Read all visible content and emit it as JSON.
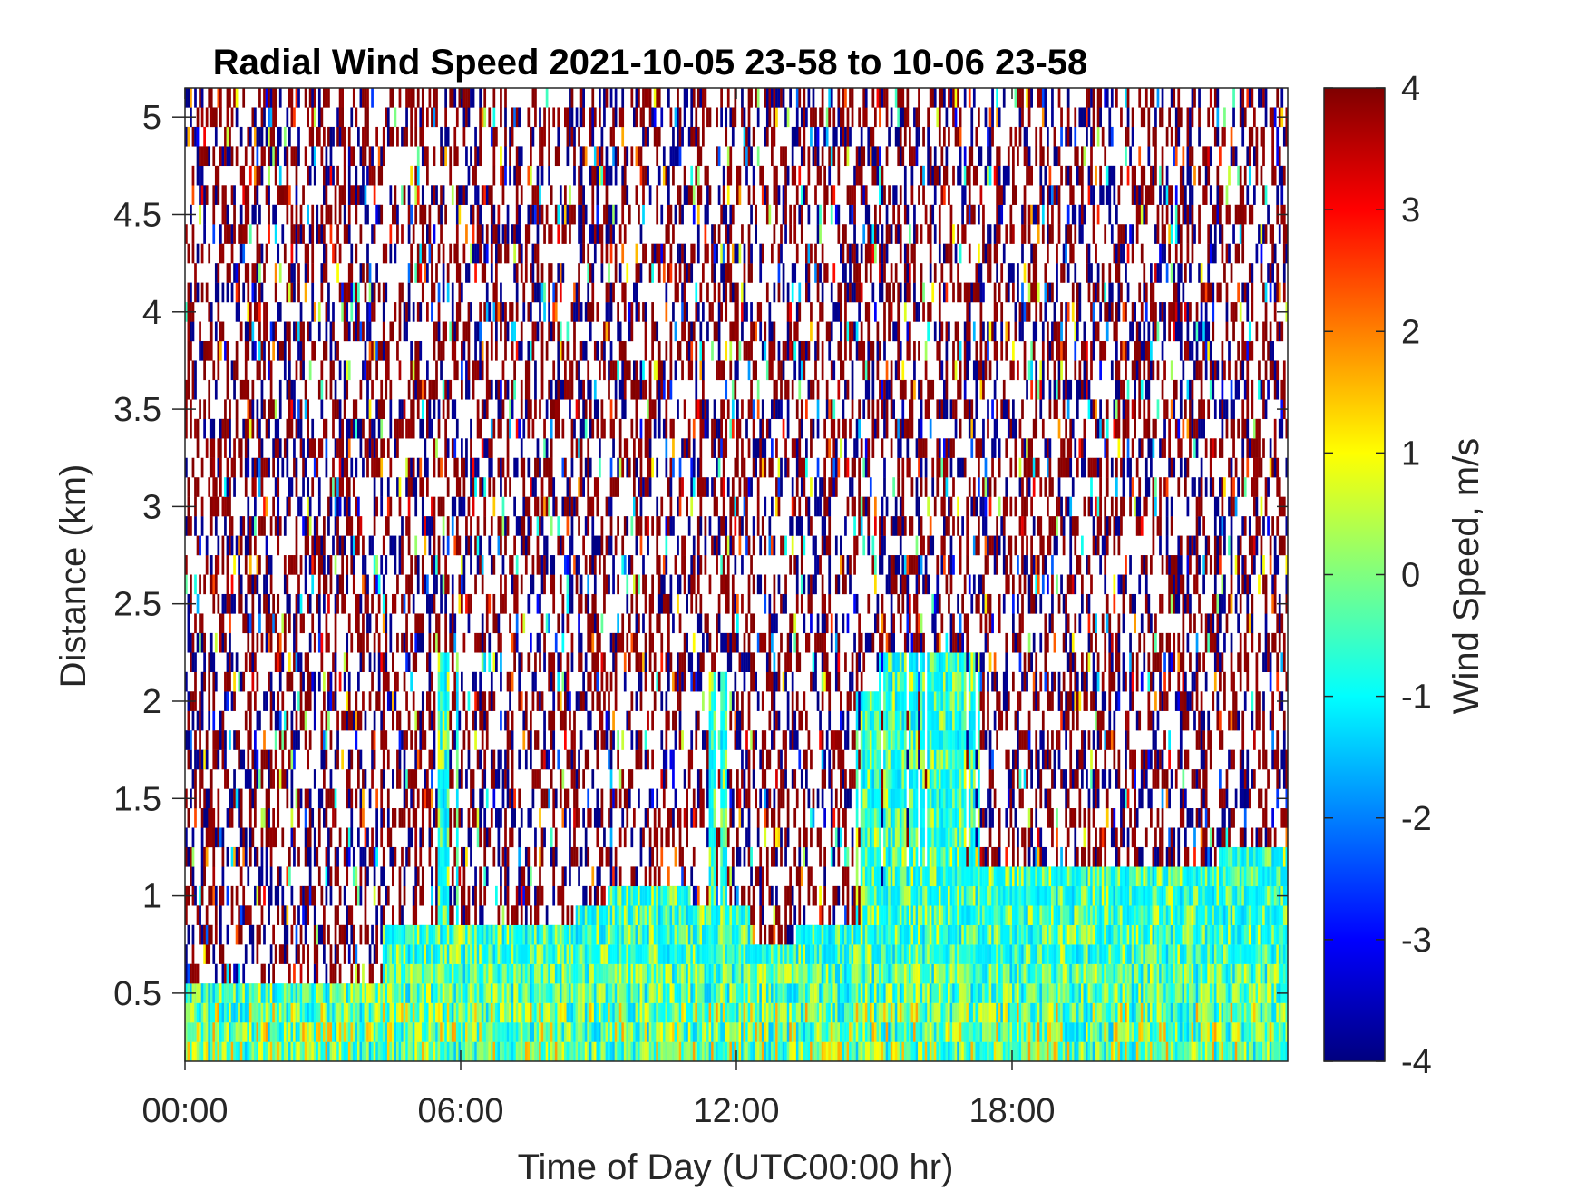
{
  "chart_data": {
    "type": "heatmap",
    "title": "Radial Wind Speed 2021-10-05 23-58 to 10-06 23-58",
    "xlabel": "Time of Day (UTC00:00 hr)",
    "ylabel": "Distance (km)",
    "colorbar_label": "Wind Speed, m/s",
    "colormap": "jet",
    "xlim_hours": [
      0,
      24
    ],
    "ylim_km": [
      0.15,
      5.15
    ],
    "clim": [
      -4,
      4
    ],
    "x_ticks": [
      {
        "value": 0,
        "label": "00:00"
      },
      {
        "value": 6,
        "label": "06:00"
      },
      {
        "value": 12,
        "label": "12:00"
      },
      {
        "value": 18,
        "label": "18:00"
      }
    ],
    "y_ticks": [
      {
        "value": 0.5,
        "label": "0.5"
      },
      {
        "value": 1.0,
        "label": "1"
      },
      {
        "value": 1.5,
        "label": "1.5"
      },
      {
        "value": 2.0,
        "label": "2"
      },
      {
        "value": 2.5,
        "label": "2.5"
      },
      {
        "value": 3.0,
        "label": "3"
      },
      {
        "value": 3.5,
        "label": "3.5"
      },
      {
        "value": 4.0,
        "label": "4"
      },
      {
        "value": 4.5,
        "label": "4.5"
      },
      {
        "value": 5.0,
        "label": "5"
      }
    ],
    "colorbar_ticks": [
      {
        "value": 4,
        "label": "4"
      },
      {
        "value": 3,
        "label": "3"
      },
      {
        "value": 2,
        "label": "2"
      },
      {
        "value": 1,
        "label": "1"
      },
      {
        "value": 0,
        "label": "0"
      },
      {
        "value": -1,
        "label": "-1"
      },
      {
        "value": -2,
        "label": "-2"
      },
      {
        "value": -3,
        "label": "-3"
      },
      {
        "value": -4,
        "label": "-4"
      }
    ],
    "signal_top_km": [
      {
        "from_hour": 0.0,
        "to_hour": 4.0,
        "top_km": 0.55
      },
      {
        "from_hour": 4.0,
        "to_hour": 4.3,
        "top_km": 0.6
      },
      {
        "from_hour": 4.3,
        "to_hour": 8.5,
        "top_km": 0.85
      },
      {
        "from_hour": 8.5,
        "to_hour": 9.2,
        "top_km": 0.95
      },
      {
        "from_hour": 9.2,
        "to_hour": 11.0,
        "top_km": 1.05
      },
      {
        "from_hour": 11.0,
        "to_hour": 12.3,
        "top_km": 0.95
      },
      {
        "from_hour": 12.3,
        "to_hour": 13.3,
        "top_km": 0.75
      },
      {
        "from_hour": 13.3,
        "to_hour": 14.8,
        "top_km": 0.85
      },
      {
        "from_hour": 14.8,
        "to_hour": 15.5,
        "top_km": 1.05
      },
      {
        "from_hour": 15.5,
        "to_hour": 17.3,
        "top_km": 1.1
      },
      {
        "from_hour": 17.3,
        "to_hour": 19.5,
        "top_km": 1.15
      },
      {
        "from_hour": 19.5,
        "to_hour": 22.5,
        "top_km": 1.1
      },
      {
        "from_hour": 22.5,
        "to_hour": 24.0,
        "top_km": 1.25
      }
    ],
    "signal_plumes": [
      {
        "from_hour": 5.5,
        "to_hour": 6.0,
        "top_km": 2.25
      },
      {
        "from_hour": 11.4,
        "to_hour": 11.8,
        "top_km": 2.15
      },
      {
        "from_hour": 14.6,
        "to_hour": 15.1,
        "top_km": 2.05
      },
      {
        "from_hour": 15.1,
        "to_hour": 16.0,
        "top_km": 2.25
      },
      {
        "from_hour": 16.0,
        "to_hour": 17.3,
        "top_km": 2.25
      }
    ],
    "signal_value_range_m_s": [
      -1.5,
      1.0
    ],
    "noise_region": "above signal_top_km, values saturated near -4 and 4 with gaps"
  }
}
